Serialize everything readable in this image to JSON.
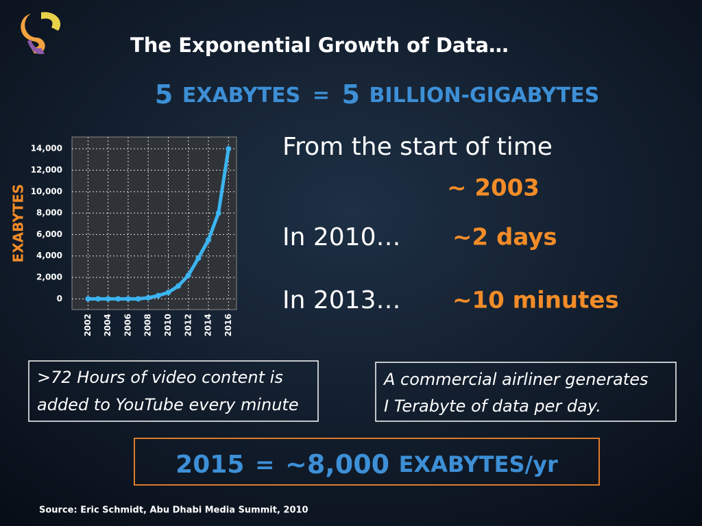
{
  "header": {
    "title": "The Exponential Growth of Data…"
  },
  "headline": {
    "parts": [
      "5",
      "EXABYTES",
      "=",
      "5",
      "BILLION-GIGABYTES"
    ]
  },
  "chart_data": {
    "type": "line",
    "y_label": "EXABYTES",
    "x": [
      2002,
      2003,
      2004,
      2005,
      2006,
      2007,
      2008,
      2009,
      2010,
      2011,
      2012,
      2013,
      2014,
      2015,
      2016
    ],
    "values": [
      0,
      0,
      0,
      0,
      0,
      0,
      100,
      300,
      600,
      1200,
      2200,
      3800,
      5500,
      8000,
      14000
    ],
    "color": "#3cb4f0",
    "xlim": [
      2000.4,
      2016.8
    ],
    "xticks": [
      2002,
      2004,
      2006,
      2008,
      2010,
      2012,
      2014,
      2016
    ],
    "ylim": [
      -1000,
      15100
    ],
    "yticks": [
      0,
      {
        "value": 2000,
        "label": "2,000"
      },
      {
        "value": 4000,
        "label": "4,000"
      },
      {
        "value": 6000,
        "label": "6,000"
      },
      {
        "value": 8000,
        "label": "8,000"
      },
      {
        "value": 10000,
        "label": "10,000"
      },
      {
        "value": 12000,
        "label": "12,000"
      },
      {
        "value": 14000,
        "label": "14,000"
      }
    ],
    "grid": true
  },
  "facts": [
    [
      "From the start of time",
      "~ 2003"
    ],
    [
      "In 2010…",
      "~2 days"
    ],
    [
      "In 2013…",
      "~10 minutes"
    ]
  ],
  "boxes": [
    {
      "lines": [
        ">72 Hours of video content is",
        "added to YouTube every minute"
      ]
    },
    {
      "lines": [
        "A commercial airliner generates",
        "I Terabyte of data per day."
      ]
    }
  ],
  "summary": {
    "parts": [
      "2015",
      "=",
      "~8,000",
      "EXABYTES/yr"
    ]
  },
  "source": "Source:  Eric Schmidt, Abu Dhabi Media Summit, 2010"
}
